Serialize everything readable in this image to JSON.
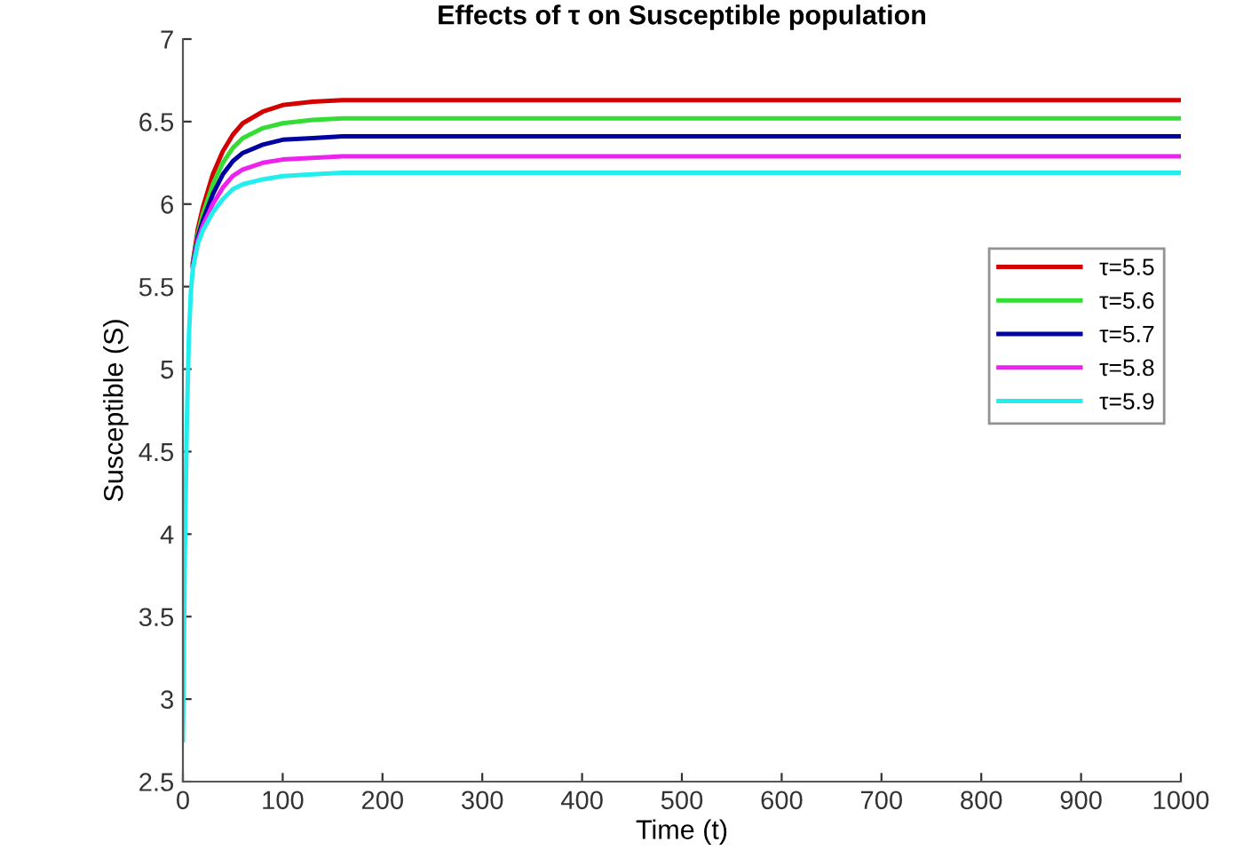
{
  "chart_data": {
    "type": "line",
    "title": "Effects of τ on Susceptible population",
    "xlabel": "Time (t)",
    "ylabel": "Susceptible (S)",
    "x": [
      0,
      2,
      4,
      6,
      8,
      10,
      15,
      20,
      30,
      40,
      50,
      60,
      80,
      100,
      130,
      160,
      200,
      300,
      500,
      1000
    ],
    "series": [
      {
        "name": "τ=5.5",
        "color": "#d40000",
        "values": [
          null,
          null,
          null,
          null,
          null,
          5.65,
          5.85,
          5.98,
          6.18,
          6.32,
          6.42,
          6.49,
          6.56,
          6.6,
          6.62,
          6.63,
          6.63,
          6.63,
          6.63,
          6.63
        ]
      },
      {
        "name": "τ=5.6",
        "color": "#33dd33",
        "values": [
          null,
          null,
          null,
          null,
          null,
          5.64,
          5.82,
          5.94,
          6.12,
          6.25,
          6.34,
          6.4,
          6.46,
          6.49,
          6.51,
          6.52,
          6.52,
          6.52,
          6.52,
          6.52
        ]
      },
      {
        "name": "τ=5.7",
        "color": "#0000a0",
        "values": [
          null,
          null,
          null,
          null,
          null,
          5.63,
          5.8,
          5.9,
          6.06,
          6.18,
          6.26,
          6.31,
          6.36,
          6.39,
          6.4,
          6.41,
          6.41,
          6.41,
          6.41,
          6.41
        ]
      },
      {
        "name": "τ=5.8",
        "color": "#ee22ee",
        "values": [
          null,
          null,
          null,
          null,
          null,
          5.62,
          5.78,
          5.87,
          6.0,
          6.1,
          6.17,
          6.21,
          6.25,
          6.27,
          6.28,
          6.29,
          6.29,
          6.29,
          6.29,
          6.29
        ]
      },
      {
        "name": "τ=5.9",
        "color": "#22eeee",
        "values": [
          2.75,
          3.9,
          4.7,
          5.2,
          5.47,
          5.61,
          5.76,
          5.84,
          5.95,
          6.03,
          6.09,
          6.12,
          6.15,
          6.17,
          6.18,
          6.19,
          6.19,
          6.19,
          6.19,
          6.19
        ]
      }
    ],
    "xlim": [
      0,
      1000
    ],
    "xticks": [
      0,
      100,
      200,
      300,
      400,
      500,
      600,
      700,
      800,
      900,
      1000
    ],
    "ylim": [
      2.5,
      7
    ],
    "yticks": [
      2.5,
      3,
      3.5,
      4,
      4.5,
      5,
      5.5,
      6,
      6.5,
      7
    ],
    "grid": false,
    "legend": "right",
    "marker": "none",
    "line_style": "solid"
  }
}
